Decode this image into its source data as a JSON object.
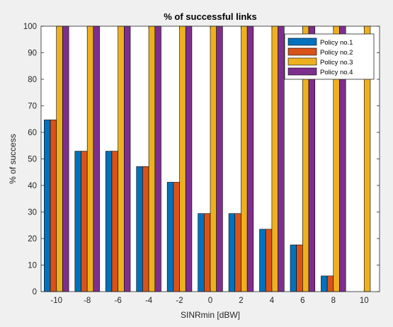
{
  "chart_data": {
    "type": "bar",
    "title": "% of successful links",
    "xlabel": "SINRmin [dBW]",
    "ylabel": "% of success",
    "categories": [
      "-10",
      "-8",
      "-6",
      "-4",
      "-2",
      "0",
      "2",
      "4",
      "6",
      "8",
      "10"
    ],
    "ylim": [
      0,
      100
    ],
    "yticks": [
      0,
      10,
      20,
      30,
      40,
      50,
      60,
      70,
      80,
      90,
      100
    ],
    "grid": false,
    "legend_position": "top-right",
    "series": [
      {
        "name": "Policy no.1",
        "color": "#0072BD",
        "values": [
          64.7,
          52.9,
          52.9,
          47.1,
          41.2,
          29.4,
          29.4,
          23.5,
          17.6,
          5.9,
          0
        ]
      },
      {
        "name": "Policy no.2",
        "color": "#D95319",
        "values": [
          64.7,
          52.9,
          52.9,
          47.1,
          41.2,
          29.4,
          29.4,
          23.5,
          17.6,
          5.9,
          0
        ]
      },
      {
        "name": "Policy no.3",
        "color": "#EDB120",
        "values": [
          100,
          100,
          100,
          100,
          100,
          100,
          100,
          100,
          100,
          100,
          100
        ]
      },
      {
        "name": "Policy no.4",
        "color": "#7E2F8E",
        "values": [
          100,
          100,
          100,
          100,
          100,
          100,
          100,
          100,
          100,
          100,
          0
        ]
      }
    ]
  }
}
